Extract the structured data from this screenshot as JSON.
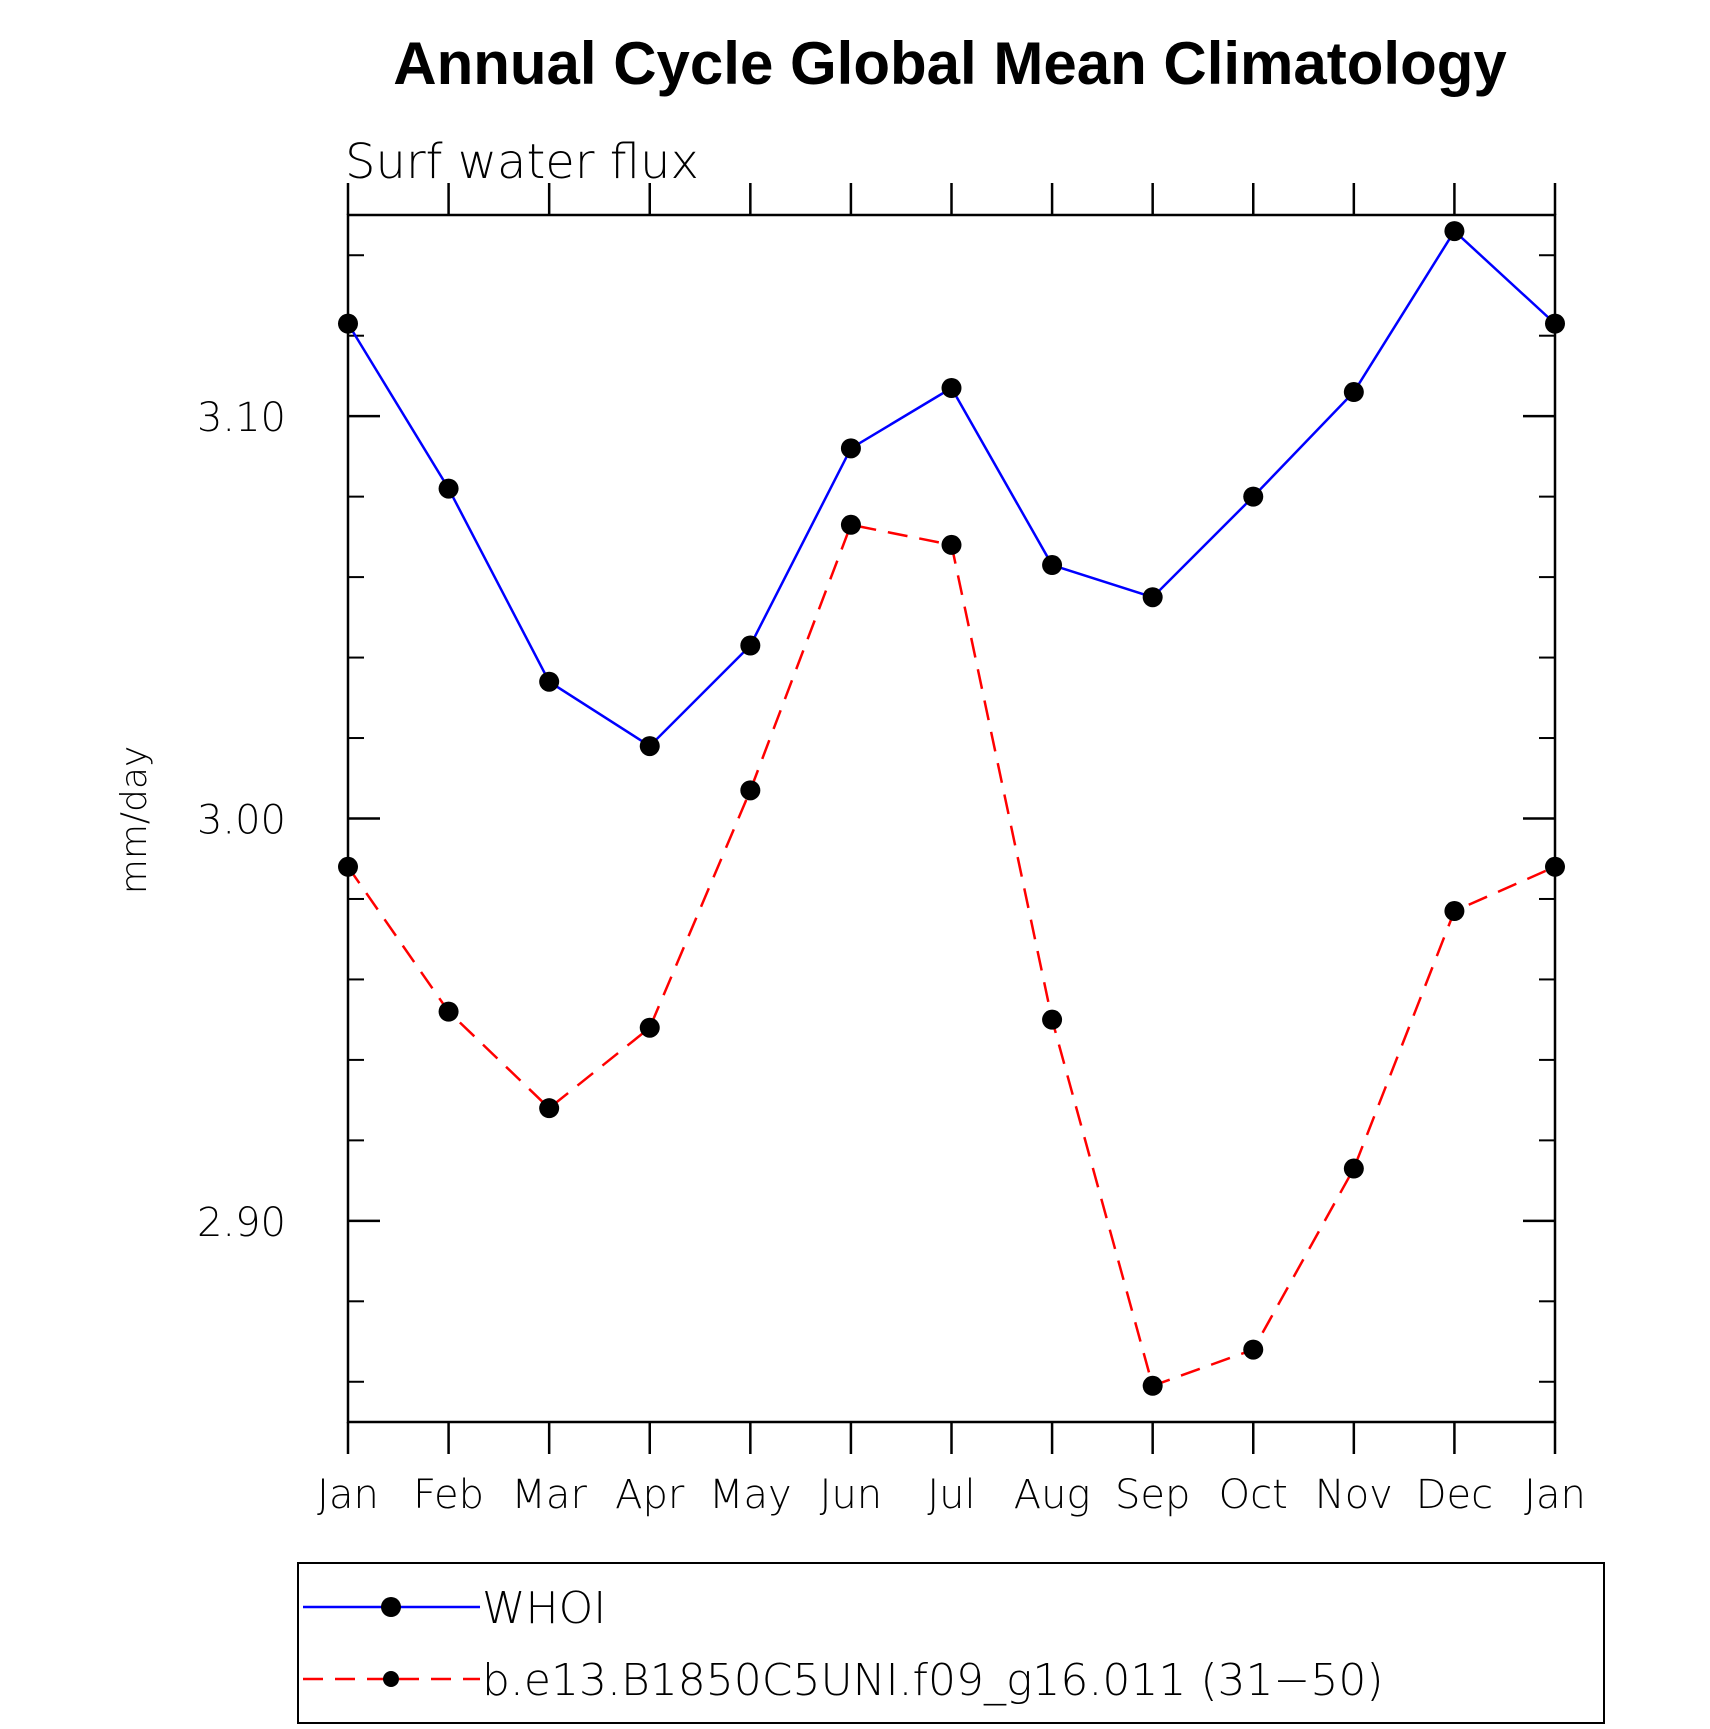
{
  "chart_data": {
    "type": "line",
    "title": "Annual Cycle Global Mean Climatology",
    "subtitle": "Surf water flux",
    "xlabel": "",
    "ylabel": "mm/day",
    "categories": [
      "Jan",
      "Feb",
      "Mar",
      "Apr",
      "May",
      "Jun",
      "Jul",
      "Aug",
      "Sep",
      "Oct",
      "Nov",
      "Dec",
      "Jan"
    ],
    "ylim": [
      2.85,
      3.15
    ],
    "yticks_major": [
      2.9,
      3.0,
      3.1
    ],
    "ytick_labels": [
      "2.90",
      "3.00",
      "3.10"
    ],
    "yticks_minor": [
      2.86,
      2.88,
      2.92,
      2.94,
      2.96,
      2.98,
      3.02,
      3.04,
      3.06,
      3.08,
      3.12,
      3.14
    ],
    "grid": false,
    "legend_position": "bottom",
    "series": [
      {
        "name": "WHOI",
        "color": "#0000ff",
        "line_style": "solid",
        "marker": "filled-circle",
        "values": [
          3.123,
          3.082,
          3.034,
          3.018,
          3.043,
          3.092,
          3.107,
          3.063,
          3.055,
          3.08,
          3.106,
          3.146,
          3.123
        ]
      },
      {
        "name": "b.e13.B1850C5UNI.f09_g16.011 (31−50)",
        "color": "#ff0000",
        "line_style": "dashed",
        "marker": "filled-circle",
        "values": [
          2.988,
          2.952,
          2.928,
          2.948,
          3.007,
          3.073,
          3.068,
          2.95,
          2.859,
          2.868,
          2.913,
          2.977,
          2.988
        ]
      }
    ]
  }
}
